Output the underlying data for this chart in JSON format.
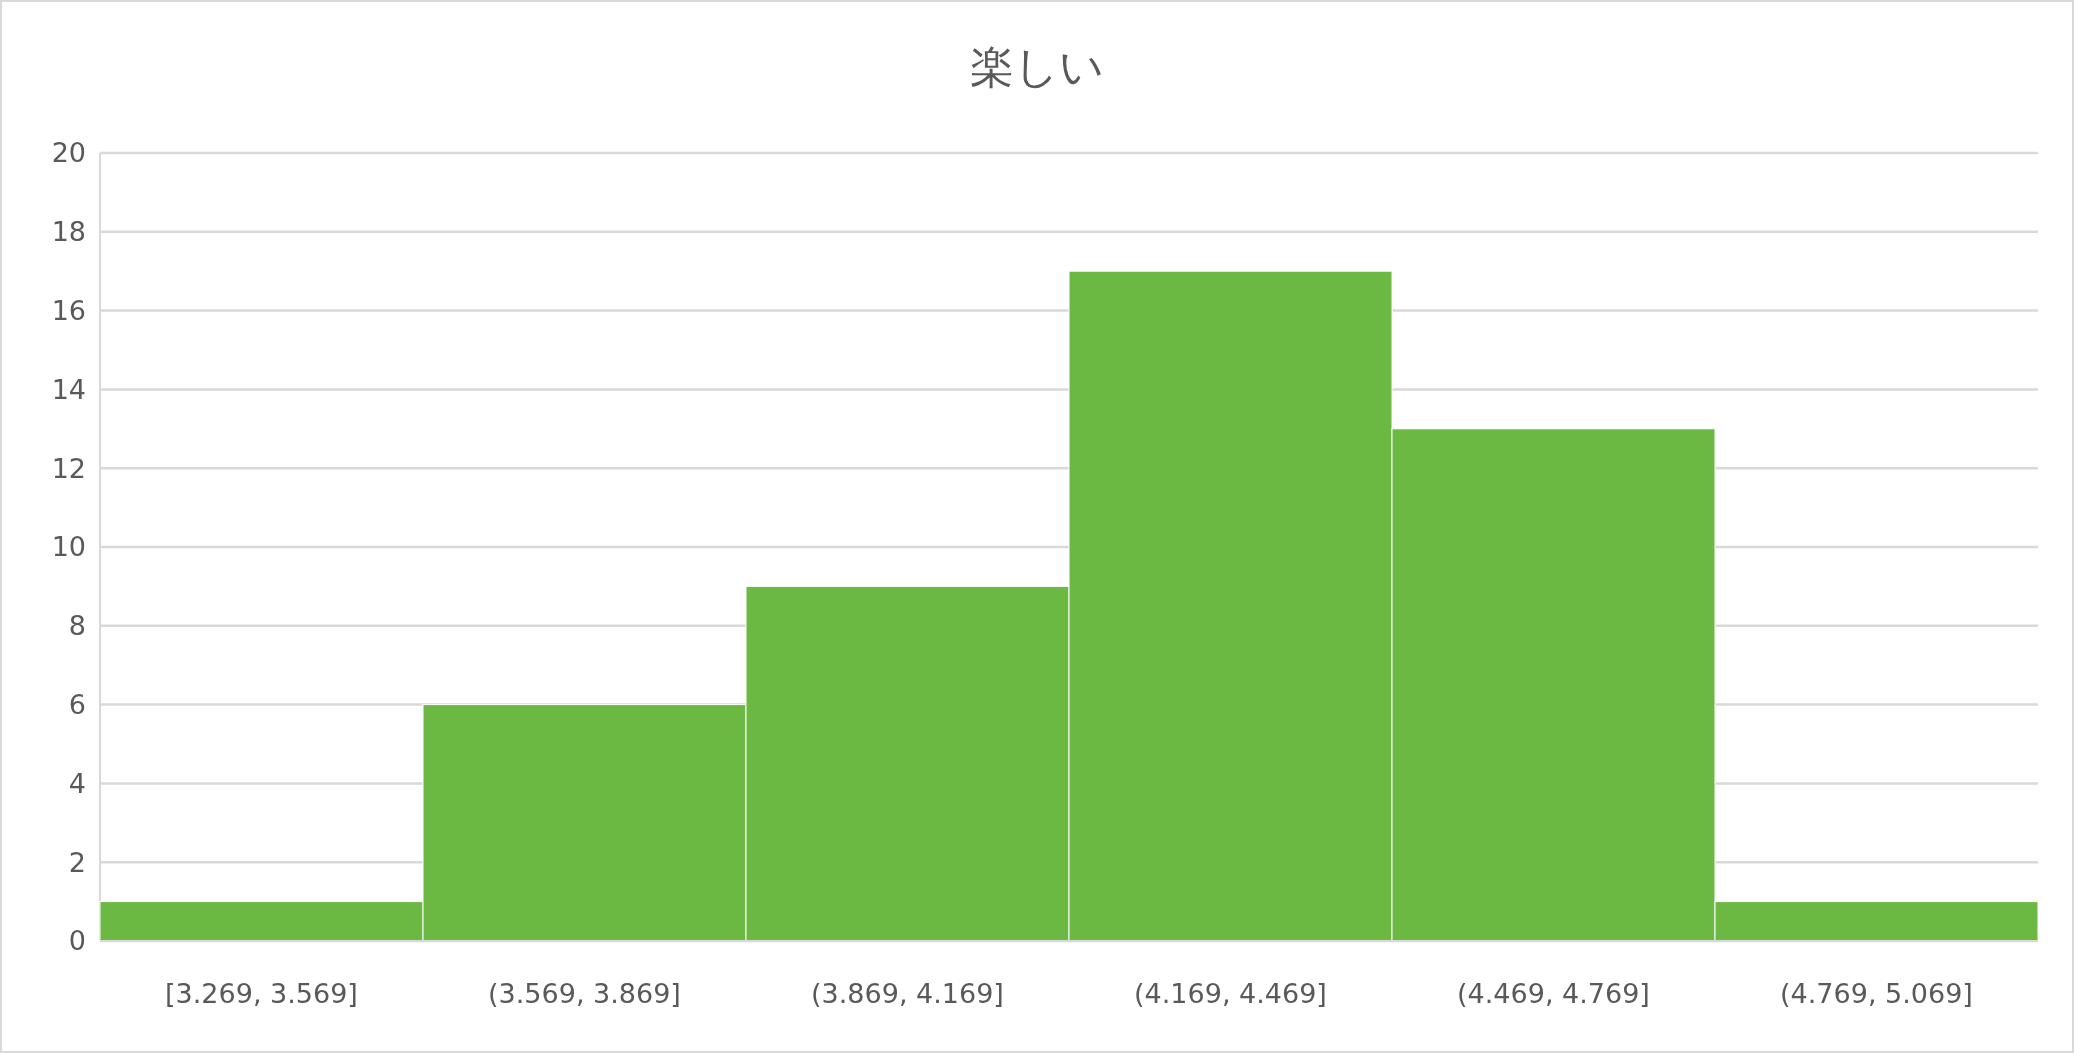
{
  "chart_data": {
    "type": "bar",
    "title": "楽しい",
    "categories": [
      "[3.269, 3.569]",
      "(3.569, 3.869]",
      "(3.869, 4.169]",
      "(4.169, 4.469]",
      "(4.469, 4.769]",
      "(4.769, 5.069]"
    ],
    "values": [
      1,
      6,
      9,
      17,
      13,
      1
    ],
    "color": "#6bb842",
    "ylim": [
      0,
      20
    ],
    "yticks": [
      0,
      2,
      4,
      6,
      8,
      10,
      12,
      14,
      16,
      18,
      20
    ],
    "grid": "y"
  }
}
